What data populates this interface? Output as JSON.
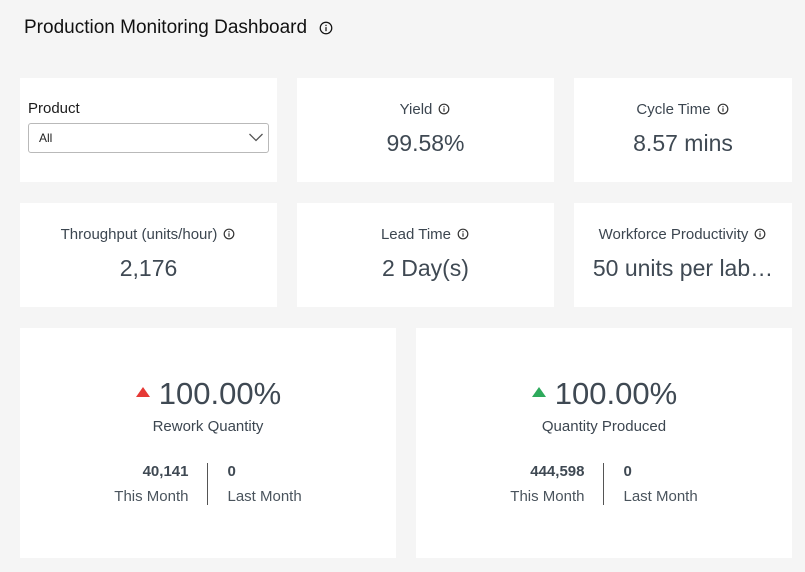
{
  "header": {
    "title": "Production Monitoring Dashboard"
  },
  "filter": {
    "label": "Product",
    "selected": "All"
  },
  "kpis": [
    {
      "label": "Yield",
      "value": "99.58%"
    },
    {
      "label": "Cycle Time",
      "value": "8.57 mins"
    },
    {
      "label": "Throughput (units/hour)",
      "value": "2,176"
    },
    {
      "label": "Lead Time",
      "value": "2 Day(s)"
    },
    {
      "label": "Workforce Productivity",
      "value": "50 units per lab…"
    }
  ],
  "comparisons": [
    {
      "change": "100.00%",
      "trend": "up",
      "trend_color": "#e53935",
      "label": "Rework Quantity",
      "this_month_value": "40,141",
      "this_month_label": "This Month",
      "last_month_value": "0",
      "last_month_label": "Last Month"
    },
    {
      "change": "100.00%",
      "trend": "up",
      "trend_color": "#2eaa5c",
      "label": "Quantity Produced",
      "this_month_value": "444,598",
      "this_month_label": "This Month",
      "last_month_value": "0",
      "last_month_label": "Last Month"
    }
  ],
  "icons": {
    "info": "info-icon",
    "dropdown": "chevron-down-icon",
    "trend": "triangle-up-icon"
  }
}
